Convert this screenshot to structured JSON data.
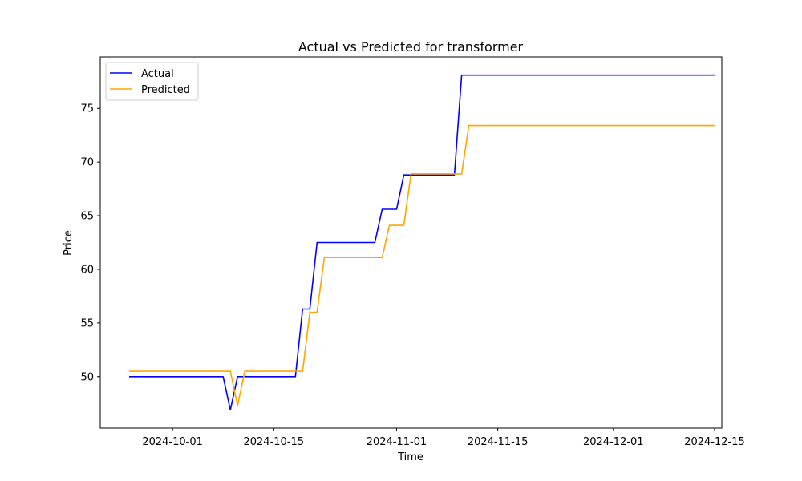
{
  "chart_data": {
    "type": "line",
    "title": "Actual vs Predicted for transformer",
    "xlabel": "Time",
    "ylabel": "Price",
    "xlim": [
      "2024-09-21",
      "2024-12-16"
    ],
    "ylim": [
      45.2,
      79.8
    ],
    "x_ticks": [
      "2024-10-01",
      "2024-10-15",
      "2024-11-01",
      "2024-11-15",
      "2024-12-01",
      "2024-12-15"
    ],
    "y_ticks": [
      50,
      55,
      60,
      65,
      70,
      75
    ],
    "grid": false,
    "legend": "top-left",
    "series": [
      {
        "name": "Actual",
        "color": "#0000ff",
        "points": [
          [
            "2024-09-25",
            50.0
          ],
          [
            "2024-10-08",
            50.0
          ],
          [
            "2024-10-09",
            46.9
          ],
          [
            "2024-10-10",
            50.0
          ],
          [
            "2024-10-18",
            50.0
          ],
          [
            "2024-10-19",
            56.3
          ],
          [
            "2024-10-20",
            56.3
          ],
          [
            "2024-10-21",
            62.5
          ],
          [
            "2024-10-29",
            62.5
          ],
          [
            "2024-10-30",
            65.6
          ],
          [
            "2024-11-01",
            65.6
          ],
          [
            "2024-11-02",
            68.8
          ],
          [
            "2024-11-09",
            68.8
          ],
          [
            "2024-11-10",
            78.1
          ],
          [
            "2024-12-15",
            78.1
          ]
        ]
      },
      {
        "name": "Predicted",
        "color": "#ffa500",
        "points": [
          [
            "2024-09-25",
            50.5
          ],
          [
            "2024-10-08",
            50.5
          ],
          [
            "2024-10-09",
            50.5
          ],
          [
            "2024-10-10",
            47.3
          ],
          [
            "2024-10-11",
            50.5
          ],
          [
            "2024-10-19",
            50.5
          ],
          [
            "2024-10-20",
            56.0
          ],
          [
            "2024-10-21",
            56.0
          ],
          [
            "2024-10-22",
            61.1
          ],
          [
            "2024-10-30",
            61.1
          ],
          [
            "2024-10-31",
            64.1
          ],
          [
            "2024-11-02",
            64.1
          ],
          [
            "2024-11-03",
            68.9
          ],
          [
            "2024-11-10",
            68.9
          ],
          [
            "2024-11-11",
            73.4
          ],
          [
            "2024-12-15",
            73.4
          ]
        ]
      }
    ]
  }
}
